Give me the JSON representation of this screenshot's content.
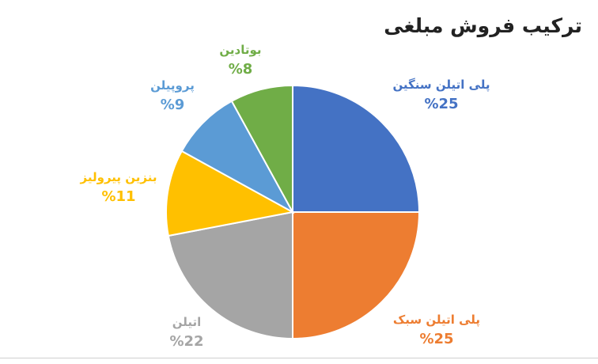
{
  "chart_data": {
    "type": "pie",
    "title": "ترکیب فروش مبلغی",
    "start_angle_deg": 0,
    "direction": "clockwise",
    "slices": [
      {
        "name": "پلی اتیلن سنگین",
        "value": 25,
        "label": "%25",
        "color": "#4472C4"
      },
      {
        "name": "پلی اتیلن سبک",
        "value": 25,
        "label": "%25",
        "color": "#ED7D31"
      },
      {
        "name": "اتیلن",
        "value": 22,
        "label": "%22",
        "color": "#A5A5A5"
      },
      {
        "name": "بنزین پیرولیز",
        "value": 11,
        "label": "%11",
        "color": "#FFC000"
      },
      {
        "name": "پروپیلن",
        "value": 9,
        "label": "%9",
        "color": "#5B9BD5"
      },
      {
        "name": "بوتادین",
        "value": 8,
        "label": "%8",
        "color": "#70AD47"
      }
    ]
  }
}
